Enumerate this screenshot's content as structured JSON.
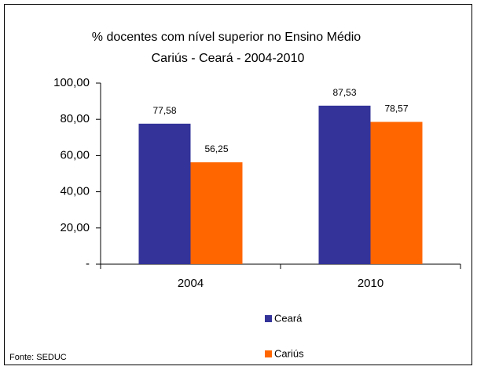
{
  "chart_data": {
    "type": "bar",
    "title": "% docentes com nível superior no Ensino Médio",
    "subtitle": "Cariús  -  Ceará - 2004-2010",
    "categories": [
      "2004",
      "2010"
    ],
    "series": [
      {
        "name": "Ceará",
        "color": "#333399",
        "values": [
          77.58,
          87.53
        ],
        "value_labels": [
          "77,58",
          "87,53"
        ]
      },
      {
        "name": "Cariús",
        "color": "#ff6600",
        "values": [
          56.25,
          78.57
        ],
        "value_labels": [
          "56,25",
          "78,57"
        ]
      }
    ],
    "ylim": [
      0,
      100
    ],
    "yticks": [
      {
        "value": 0,
        "label": "-"
      },
      {
        "value": 20,
        "label": "20,00"
      },
      {
        "value": 40,
        "label": "40,00"
      },
      {
        "value": 60,
        "label": "60,00"
      },
      {
        "value": 80,
        "label": "80,00"
      },
      {
        "value": 100,
        "label": "100,00"
      }
    ],
    "grid": false,
    "legend": "bottom",
    "source": "Fonte: SEDUC"
  }
}
